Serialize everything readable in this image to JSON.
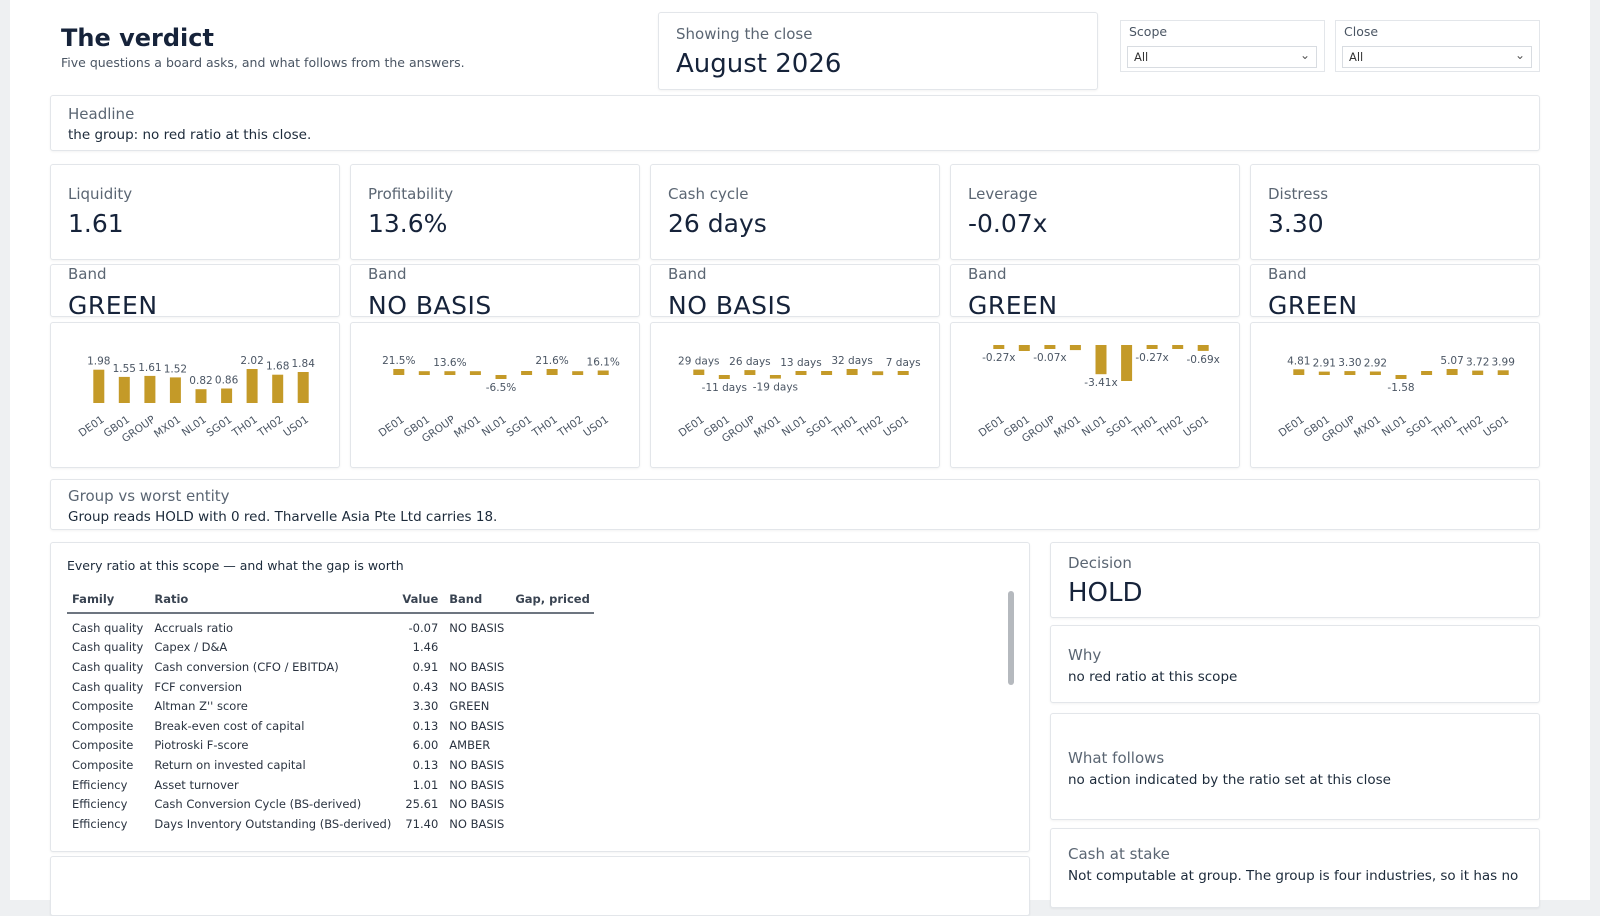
{
  "header": {
    "title": "The verdict",
    "subtitle": "Five questions a board asks, and what follows from the answers."
  },
  "showing": {
    "label": "Showing the close",
    "value": "August 2026"
  },
  "filters": {
    "scope": {
      "label": "Scope",
      "value": "All"
    },
    "close": {
      "label": "Close",
      "value": "All"
    }
  },
  "headline": {
    "label": "Headline",
    "text": "the group: no red ratio at this close."
  },
  "band_label": "Band",
  "kpis": [
    {
      "label": "Liquidity",
      "value": "1.61",
      "band": "GREEN"
    },
    {
      "label": "Profitability",
      "value": "13.6%",
      "band": "NO BASIS"
    },
    {
      "label": "Cash cycle",
      "value": "26 days",
      "band": "NO BASIS"
    },
    {
      "label": "Leverage",
      "value": "-0.07x",
      "band": "GREEN"
    },
    {
      "label": "Distress",
      "value": "3.30",
      "band": "GREEN"
    }
  ],
  "chart_data": [
    {
      "type": "bar",
      "title": "Liquidity",
      "categories": [
        "DE01",
        "GB01",
        "GROUP",
        "MX01",
        "NL01",
        "SG01",
        "TH01",
        "TH02",
        "US01"
      ],
      "values": [
        1.98,
        1.55,
        1.61,
        1.52,
        0.82,
        0.86,
        2.02,
        1.68,
        1.84
      ],
      "labels": [
        "1.98",
        "1.55",
        "1.61",
        "1.52",
        "0.82",
        "0.86",
        "2.02",
        "1.68",
        "1.84"
      ],
      "color": "#c49a28"
    },
    {
      "type": "bar",
      "title": "Profitability",
      "categories": [
        "DE01",
        "GB01",
        "GROUP",
        "MX01",
        "NL01",
        "SG01",
        "TH01",
        "TH02",
        "US01"
      ],
      "values": [
        21.5,
        13.6,
        13.6,
        13.6,
        -6.5,
        0,
        21.6,
        13.6,
        16.1
      ],
      "labels": [
        "21.5%",
        "",
        "13.6%",
        "",
        "-6.5%",
        "",
        "21.6%",
        "",
        "16.1%"
      ],
      "color": "#c49a28"
    },
    {
      "type": "bar",
      "title": "Cash cycle",
      "categories": [
        "DE01",
        "GB01",
        "GROUP",
        "MX01",
        "NL01",
        "SG01",
        "TH01",
        "TH02",
        "US01"
      ],
      "values": [
        29,
        -11,
        26,
        -19,
        13,
        13,
        32,
        20,
        7
      ],
      "labels": [
        "29 days",
        "-11 days",
        "26 days",
        "-19 days",
        "13 days",
        "",
        "32 days",
        "",
        "7 days"
      ],
      "color": "#c49a28"
    },
    {
      "type": "bar",
      "title": "Leverage",
      "categories": [
        "DE01",
        "GB01",
        "GROUP",
        "MX01",
        "NL01",
        "SG01",
        "TH01",
        "TH02",
        "US01"
      ],
      "values": [
        -0.27,
        -0.7,
        -0.07,
        -0.6,
        -3.41,
        -4.2,
        -0.27,
        -0.05,
        -0.69
      ],
      "labels": [
        "-0.27x",
        "",
        "-0.07x",
        "",
        "-3.41x",
        "",
        "-0.27x",
        "",
        "-0.69x"
      ],
      "color": "#c49a28"
    },
    {
      "type": "bar",
      "title": "Distress",
      "categories": [
        "DE01",
        "GB01",
        "GROUP",
        "MX01",
        "NL01",
        "SG01",
        "TH01",
        "TH02",
        "US01"
      ],
      "values": [
        4.81,
        2.91,
        3.3,
        2.92,
        -1.58,
        0,
        5.07,
        3.72,
        3.99
      ],
      "labels": [
        "4.81",
        "2.91",
        "3.30",
        "2.92",
        "-1.58",
        "",
        "5.07",
        "3.72",
        "3.99"
      ],
      "color": "#c49a28"
    }
  ],
  "group_vs": {
    "label": "Group vs worst entity",
    "text": "Group reads HOLD with 0 red. Tharvelle Asia Pte Ltd carries 18."
  },
  "table": {
    "title": "Every ratio at this scope — and what the gap is worth",
    "columns": [
      "Family",
      "Ratio",
      "Value",
      "Band",
      "Gap, priced"
    ],
    "rows": [
      [
        "Cash quality",
        "Accruals ratio",
        "-0.07",
        "NO BASIS",
        ""
      ],
      [
        "Cash quality",
        "Capex / D&A",
        "1.46",
        "",
        ""
      ],
      [
        "Cash quality",
        "Cash conversion (CFO / EBITDA)",
        "0.91",
        "NO BASIS",
        ""
      ],
      [
        "Cash quality",
        "FCF conversion",
        "0.43",
        "NO BASIS",
        ""
      ],
      [
        "Composite",
        "Altman Z'' score",
        "3.30",
        "GREEN",
        ""
      ],
      [
        "Composite",
        "Break-even cost of capital",
        "0.13",
        "NO BASIS",
        ""
      ],
      [
        "Composite",
        "Piotroski F-score",
        "6.00",
        "AMBER",
        ""
      ],
      [
        "Composite",
        "Return on invested capital",
        "0.13",
        "NO BASIS",
        ""
      ],
      [
        "Efficiency",
        "Asset turnover",
        "1.01",
        "NO BASIS",
        ""
      ],
      [
        "Efficiency",
        "Cash Conversion Cycle (BS-derived)",
        "25.61",
        "NO BASIS",
        ""
      ],
      [
        "Efficiency",
        "Days Inventory Outstanding (BS-derived)",
        "71.40",
        "NO BASIS",
        ""
      ]
    ]
  },
  "decision": {
    "label": "Decision",
    "value": "HOLD"
  },
  "why": {
    "label": "Why",
    "text": "no red ratio at this scope"
  },
  "follows": {
    "label": "What follows",
    "text": "no action indicated by the ratio set at this close"
  },
  "cash": {
    "label": "Cash at stake",
    "text": "Not computable at group. The group is four industries, so it has no"
  },
  "icons": {
    "dropdown": "chevron-down-icon"
  }
}
